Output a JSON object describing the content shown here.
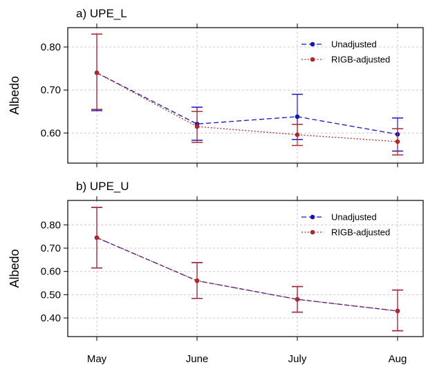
{
  "chart_data": [
    {
      "type": "line",
      "title": "a) UPE_L",
      "ylabel": "Albedo",
      "xlabel": "",
      "categories": [
        "May",
        "June",
        "July",
        "Aug"
      ],
      "ylim": [
        0.53,
        0.845
      ],
      "yticks": [
        "0.60",
        "0.70",
        "0.80"
      ],
      "grid": true,
      "legend_position": "top-right",
      "series": [
        {
          "name": "Unadjusted",
          "color": "#1515c0",
          "line_style": "dashed",
          "values": [
            0.74,
            0.621,
            0.638,
            0.597
          ],
          "error_low": [
            0.652,
            0.583,
            0.585,
            0.558
          ],
          "error_high": [
            0.83,
            0.66,
            0.69,
            0.635
          ]
        },
        {
          "name": "RIGB-adjusted",
          "color": "#b02828",
          "line_style": "dotted",
          "values": [
            0.74,
            0.615,
            0.596,
            0.58
          ],
          "error_low": [
            0.655,
            0.578,
            0.571,
            0.549
          ],
          "error_high": [
            0.83,
            0.65,
            0.62,
            0.61
          ]
        }
      ]
    },
    {
      "type": "line",
      "title": "b) UPE_U",
      "ylabel": "Albedo",
      "xlabel": "",
      "categories": [
        "May",
        "June",
        "July",
        "Aug"
      ],
      "ylim": [
        0.32,
        0.905
      ],
      "yticks": [
        "0.40",
        "0.50",
        "0.60",
        "0.70",
        "0.80"
      ],
      "grid": true,
      "legend_position": "top-right",
      "series": [
        {
          "name": "Unadjusted",
          "color": "#1515c0",
          "line_style": "dashed",
          "values": [
            0.745,
            0.56,
            0.48,
            0.43
          ],
          "error_low": [
            0.615,
            0.484,
            0.425,
            0.345
          ],
          "error_high": [
            0.875,
            0.638,
            0.535,
            0.52
          ]
        },
        {
          "name": "RIGB-adjusted",
          "color": "#b02828",
          "line_style": "dotted",
          "values": [
            0.745,
            0.56,
            0.48,
            0.43
          ],
          "error_low": [
            0.615,
            0.484,
            0.425,
            0.345
          ],
          "error_high": [
            0.875,
            0.638,
            0.535,
            0.52
          ]
        }
      ]
    }
  ]
}
